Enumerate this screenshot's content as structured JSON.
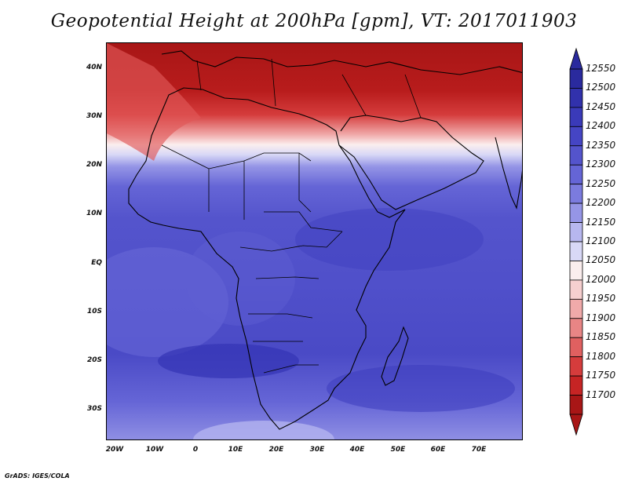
{
  "title": "Geopotential Height at 200hPa [gpm], VT: 2017011903",
  "credit": "GrADS: IGES/COLA",
  "map": {
    "lon_range": [
      -23,
      80
    ],
    "lat_range": [
      -37,
      45
    ],
    "lat_ticks": [
      "40N",
      "30N",
      "20N",
      "10N",
      "EQ",
      "10S",
      "20S",
      "30S"
    ],
    "lon_ticks": [
      "20W",
      "10W",
      "0",
      "10E",
      "20E",
      "30E",
      "40E",
      "50E",
      "60E",
      "70E"
    ]
  },
  "colorbar": {
    "labels": [
      "12550",
      "12500",
      "12450",
      "12400",
      "12350",
      "12300",
      "12250",
      "12200",
      "12150",
      "12100",
      "12050",
      "12000",
      "11950",
      "11900",
      "11850",
      "11800",
      "11750",
      "11700"
    ],
    "colors": [
      "#2a2a9e",
      "#3131ac",
      "#3a3ab9",
      "#4545c4",
      "#5454cc",
      "#6565d6",
      "#7b7bde",
      "#9595e6",
      "#b7b7ef",
      "#d8d8f6",
      "#fbeeee",
      "#f6cfcf",
      "#f0aaaa",
      "#e88585",
      "#e06060",
      "#d53c3c",
      "#c62424",
      "#a81616"
    ]
  }
}
